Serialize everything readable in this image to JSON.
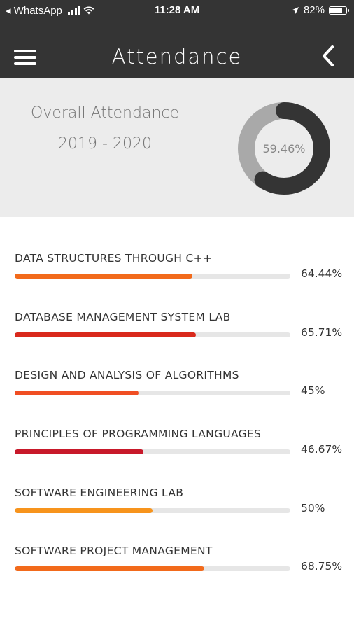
{
  "status_bar": {
    "back_app": "◂ WhatsApp",
    "time": "11:28 AM",
    "battery_text": "82%",
    "battery_level": 0.82
  },
  "header": {
    "title": "Attendance",
    "menu_icon": "hamburger-menu-icon",
    "back_icon": "chevron-left-icon"
  },
  "overview": {
    "title": "Overall Attendance",
    "year": "2019 - 2020",
    "percent_label": "59.46%",
    "percent_value": 59.46,
    "colors": {
      "filled": "#343434",
      "remaining": "#a9a9a9"
    }
  },
  "subjects": [
    {
      "name": "DATA STRUCTURES THROUGH C++",
      "percent_label": "64.44%",
      "value": 64.44,
      "color": "#f26a1b"
    },
    {
      "name": "DATABASE MANAGEMENT SYSTEM LAB",
      "percent_label": "65.71%",
      "value": 65.71,
      "color": "#d9291c"
    },
    {
      "name": "DESIGN AND ANALYSIS OF ALGORITHMS",
      "percent_label": "45%",
      "value": 45,
      "color": "#f04e23"
    },
    {
      "name": "PRINCIPLES OF PROGRAMMING LANGUAGES",
      "percent_label": "46.67%",
      "value": 46.67,
      "color": "#c8192a"
    },
    {
      "name": "SOFTWARE ENGINEERING LAB",
      "percent_label": "50%",
      "value": 50,
      "color": "#f7941d"
    },
    {
      "name": "SOFTWARE PROJECT MANAGEMENT",
      "percent_label": "68.75%",
      "value": 68.75,
      "color": "#f26a1b"
    }
  ]
}
